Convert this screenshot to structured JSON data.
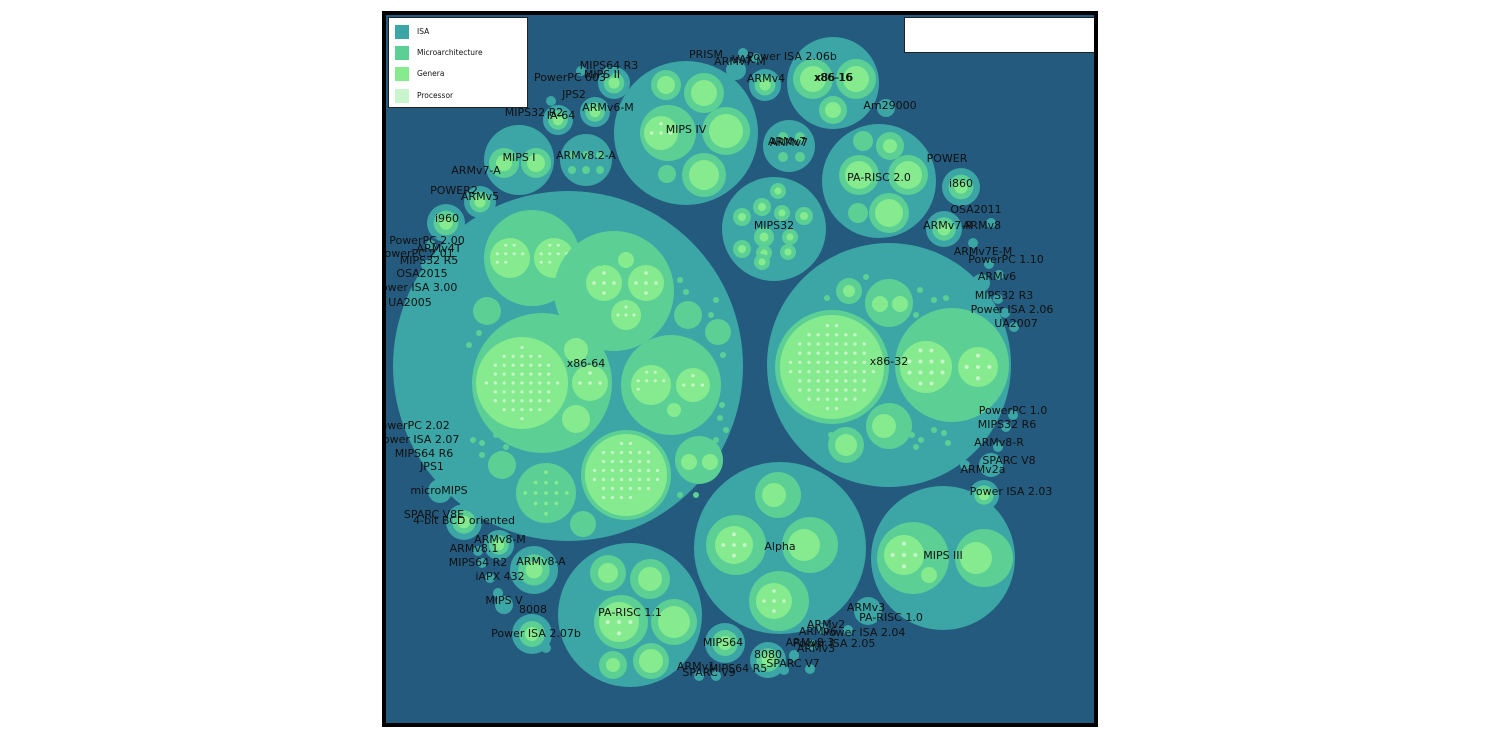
{
  "colors": {
    "background": "#245a7d",
    "isa": "#3ca6a6",
    "microarchitecture": "#5ccf95",
    "genera": "#86eb8e",
    "processor": "#c8f5cc"
  },
  "legend": {
    "items": [
      {
        "label": "ISA",
        "color": "#3ca6a6"
      },
      {
        "label": "Microarchitecture",
        "color": "#5ccf95"
      },
      {
        "label": "Genera",
        "color": "#86eb8e"
      },
      {
        "label": "Processor",
        "color": "#c8f5cc"
      }
    ]
  },
  "labels": {
    "x86_64": "x86-64",
    "x86_32": "x86-32",
    "x86_16": "x86-16",
    "mips_iv": "MIPS IV",
    "mips32": "MIPS32",
    "armv7": "ARMv7",
    "pa_risc_20": "PA-RISC 2.0",
    "alpha": "Alpha",
    "mips_iii": "MIPS III",
    "pa_risc_11": "PA-RISC 1.1",
    "mips_i": "MIPS I",
    "armv8_2_a": "ARMv8.2-A",
    "mips64_r3": "MIPS64 R3",
    "mips_ii": "MIPS II",
    "powerpc_603": "PowerPC 603",
    "prism": "PRISM",
    "vax": "VAX",
    "armv6_m": "ARMv6-M",
    "jps2": "JPS2",
    "ia_64": "IA-64",
    "mips32_r2": "MIPS32 R2",
    "armv4": "ARMv4",
    "power_isa_206b": "Power ISA 2.06b",
    "armv7_m": "ARMv7-M",
    "am29000": "Am29000",
    "power": "POWER",
    "i860": "i860",
    "osa2011": "OSA2011",
    "armv8": "ARMv8",
    "armv7_r": "ARMv7-R",
    "armv7e_m": "ARMv7E-M",
    "powerpc_110": "PowerPC 1.10",
    "armv6": "ARMv6",
    "mips32_r3": "MIPS32 R3",
    "power_isa_206": "Power ISA 2.06",
    "ua2007": "UA2007",
    "powerpc_10": "PowerPC 1.0",
    "mips32_r6": "MIPS32 R6",
    "armv8_r": "ARMv8-R",
    "sparc_v8": "SPARC V8",
    "armv2a": "ARMv2a",
    "power_isa_203": "Power ISA 2.03",
    "armv7_a": "ARMv7-A",
    "power2": "POWER2",
    "armv5": "ARMv5",
    "i960": "i960",
    "powerpc_200": "PowerPC 2.00",
    "armv4t": "ARMv4T",
    "powerpc_201": "PowerPC 2.01",
    "mips32_r5": "MIPS32 R5",
    "osa2015": "OSA2015",
    "power_isa_300": "Power ISA 3.00",
    "ua2005": "UA2005",
    "powerpc_202": "PowerPC 2.02",
    "power_isa_207": "Power ISA 2.07",
    "mips64_r6": "MIPS64 R6",
    "jps1": "JPS1",
    "micromips": "microMIPS",
    "sparc_v8e": "SPARC V8E",
    "bcd4": "4-bit BCD oriented",
    "armv8_m": "ARMv8-M",
    "armv8_1": "ARMv8.1",
    "armv8_a": "ARMv8-A",
    "mips64_r2": "MIPS64 R2",
    "iapx432": "iAPX 432",
    "mips_v": "MIPS V",
    "i8008": "8008",
    "power_isa_207b": "Power ISA 2.07b",
    "mips64": "MIPS64",
    "armv1": "ARMv1",
    "mips64_r5": "MIPS64 R5",
    "sparc_v9": "SPARC V9",
    "i8080": "8080",
    "sparc_v7": "SPARC V7",
    "armv2": "ARMv2",
    "armv3": "ARMv3",
    "pa_risc_10": "PA-RISC 1.0",
    "armv6_ish": "ARMv6",
    "power_isa_204": "Power ISA 2.04",
    "power_isa_205": "Power ISA 2.05",
    "armv8_3": "ARMv8.3",
    "armv3b": "ARMv3"
  }
}
